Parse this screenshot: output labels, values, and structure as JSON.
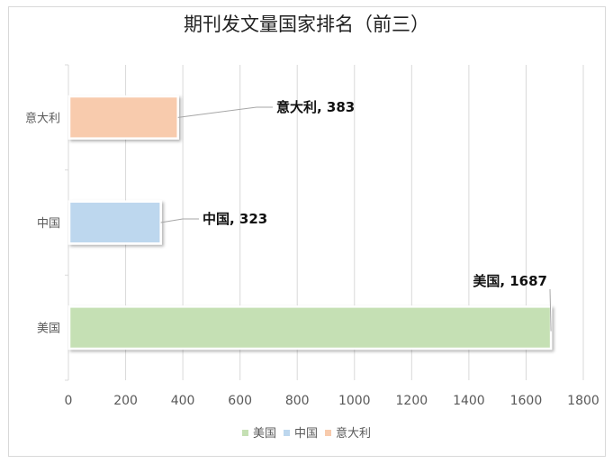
{
  "chart_data": {
    "type": "bar",
    "orientation": "horizontal",
    "title": "期刊发文量国家排名（前三）",
    "categories": [
      "美国",
      "中国",
      "意大利"
    ],
    "values": [
      1687,
      323,
      383
    ],
    "colors": [
      "#c5e0b4",
      "#bdd7ee",
      "#f8cbad"
    ],
    "data_labels": [
      "美国, 1687",
      "中国, 323",
      "意大利, 383"
    ],
    "xlim": [
      0,
      1800
    ],
    "xticks": [
      "0",
      "200",
      "400",
      "600",
      "800",
      "1000",
      "1200",
      "1400",
      "1600",
      "1800"
    ],
    "grid": true,
    "legend_position": "bottom",
    "legend": [
      "美国",
      "中国",
      "意大利"
    ]
  }
}
